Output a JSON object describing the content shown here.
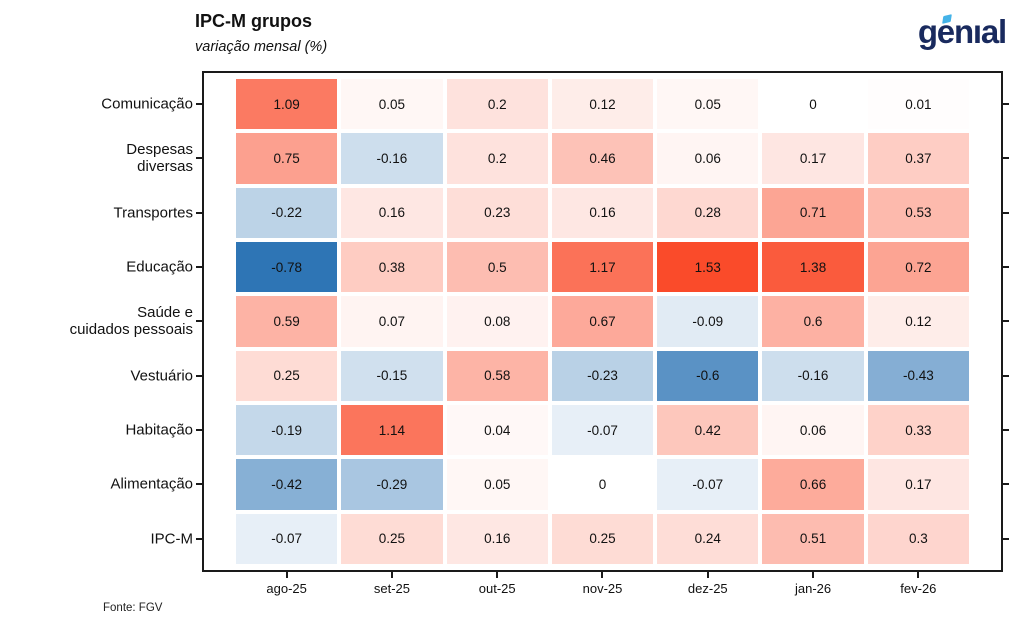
{
  "header": {
    "title": "IPC-M grupos",
    "subtitle": "variação mensal (%)",
    "logo_text": "genıal"
  },
  "footer": {
    "source": "Fonte: FGV"
  },
  "chart_data": {
    "type": "heatmap",
    "title": "IPC-M grupos",
    "subtitle": "variação mensal (%)",
    "x_categories": [
      "ago-25",
      "set-25",
      "out-25",
      "nov-25",
      "dez-25",
      "jan-26",
      "fev-26"
    ],
    "y_categories": [
      "Comunicação",
      "Despesas diversas",
      "Transportes",
      "Educação",
      "Saúde e cuidados pessoais",
      "Vestuário",
      "Habitação",
      "Alimentação",
      "IPC-M"
    ],
    "y_categories_lines": [
      [
        "Comunicação"
      ],
      [
        "Despesas",
        "diversas"
      ],
      [
        "Transportes"
      ],
      [
        "Educação"
      ],
      [
        "Saúde e",
        "cuidados pessoais"
      ],
      [
        "Vestuário"
      ],
      [
        "Habitação"
      ],
      [
        "Alimentação"
      ],
      [
        "IPC-M"
      ]
    ],
    "values": [
      [
        1.09,
        0.05,
        0.2,
        0.12,
        0.05,
        0,
        0.01
      ],
      [
        0.75,
        -0.16,
        0.2,
        0.46,
        0.06,
        0.17,
        0.37
      ],
      [
        -0.22,
        0.16,
        0.23,
        0.16,
        0.28,
        0.71,
        0.53
      ],
      [
        -0.78,
        0.38,
        0.5,
        1.17,
        1.53,
        1.38,
        0.72
      ],
      [
        0.59,
        0.07,
        0.08,
        0.67,
        -0.09,
        0.6,
        0.12
      ],
      [
        0.25,
        -0.15,
        0.58,
        -0.23,
        -0.6,
        -0.16,
        -0.43
      ],
      [
        -0.19,
        1.14,
        0.04,
        -0.07,
        0.42,
        0.06,
        0.33
      ],
      [
        -0.42,
        -0.29,
        0.05,
        0,
        -0.07,
        0.66,
        0.17
      ],
      [
        -0.07,
        0.25,
        0.16,
        0.25,
        0.24,
        0.51,
        0.3
      ]
    ],
    "color_scale": {
      "type": "diverging",
      "negative_color": "#2e75b5",
      "midpoint_color": "#ffffff",
      "positive_color": "#fa4b2a",
      "vmin": -0.78,
      "center": 0,
      "vmax": 1.53
    },
    "legend": "none",
    "grid": "off",
    "source": "Fonte: FGV"
  },
  "colors": {
    "spine": "#1a1a1a",
    "logo_navy": "#192a5e",
    "logo_accent": "#44b3e8"
  }
}
